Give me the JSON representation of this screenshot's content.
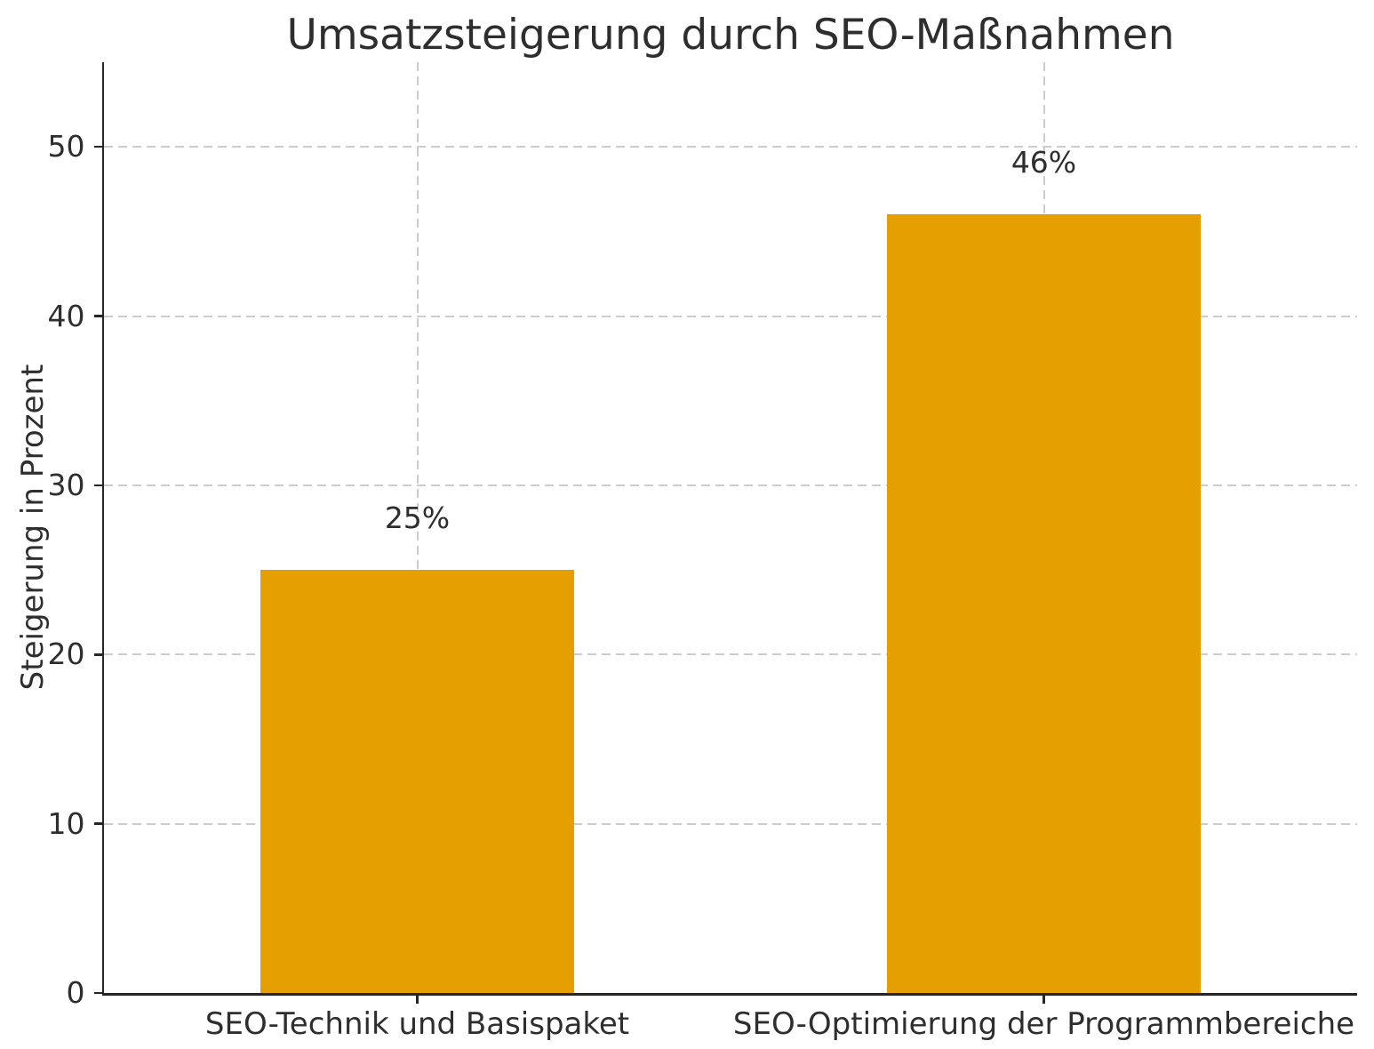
{
  "chart_data": {
    "type": "bar",
    "title": "Umsatzsteigerung durch SEO-Maßnahmen",
    "xlabel": "",
    "ylabel": "Steigerung in Prozent",
    "categories": [
      "SEO-Technik und Basispaket",
      "SEO-Optimierung der Programmbereiche"
    ],
    "values": [
      25,
      46
    ],
    "bar_labels": [
      "25%",
      "46%"
    ],
    "yticks": [
      0,
      10,
      20,
      30,
      40,
      50
    ],
    "ylim": [
      0,
      55
    ],
    "grid": "both-axes, dashed, below bars",
    "legend": "none",
    "style": {
      "bar_color": "#E69F00",
      "text_color": "#2e2e2e",
      "spine_color": "#262626",
      "grid_color": "#cccccc",
      "background": "#ffffff"
    }
  }
}
